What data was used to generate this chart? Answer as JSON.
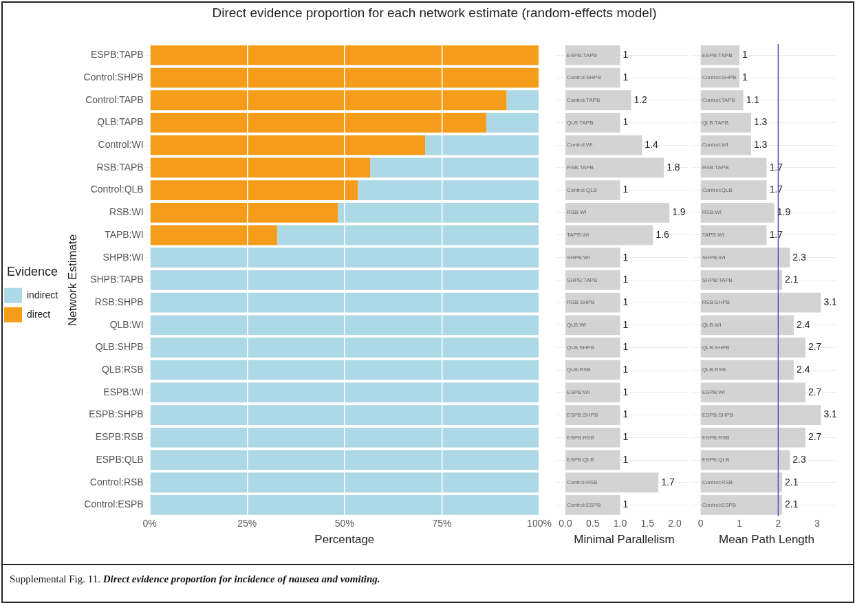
{
  "chart_data": [
    {
      "type": "bar",
      "orientation": "horizontal",
      "stacked": true,
      "title": "Direct evidence proportion for each network estimate (random-effects model)",
      "xlabel": "Percentage",
      "ylabel": "Network Estimate",
      "categories": [
        "ESPB:TAPB",
        "Control:SHPB",
        "Control:TAPB",
        "QLB:TAPB",
        "Control:WI",
        "RSB:TAPB",
        "Control:QLB",
        "RSB:WI",
        "TAPB:WI",
        "SHPB:WI",
        "SHPB:TAPB",
        "RSB:SHPB",
        "QLB:WI",
        "QLB:SHPB",
        "QLB:RSB",
        "ESPB:WI",
        "ESPB:SHPB",
        "ESPB:RSB",
        "ESPB:QLB",
        "Control:RSB",
        "Control:ESPB"
      ],
      "series": [
        {
          "name": "direct",
          "color": "#f59d1a",
          "values": [
            100,
            100,
            91.6,
            86.4,
            70.7,
            56.6,
            53.4,
            48.3,
            32.7,
            0,
            0,
            0,
            0,
            0,
            0,
            0,
            0,
            0,
            0,
            0,
            0
          ]
        },
        {
          "name": "indirect",
          "color": "#add8e6",
          "values": [
            0,
            0,
            8.4,
            13.6,
            29.3,
            43.4,
            46.6,
            51.7,
            67.3,
            100,
            100,
            100,
            100,
            100,
            100,
            100,
            100,
            100,
            100,
            100,
            100
          ]
        }
      ],
      "xlim": [
        0,
        100
      ],
      "xticks": [
        {
          "value": 0,
          "label": "0%"
        },
        {
          "value": 25,
          "label": "25%"
        },
        {
          "value": 50,
          "label": "50%"
        },
        {
          "value": 75,
          "label": "75%"
        },
        {
          "value": 100,
          "label": "100%"
        }
      ],
      "grid": true,
      "legend": "left",
      "legend_title": "Evidence",
      "annotations": [
        "Supplemental Fig. 11.",
        "Direct evidence proportion for incidence of  nausea and vomiting."
      ]
    },
    {
      "type": "bar",
      "orientation": "horizontal",
      "xlabel": "Minimal Parallelism",
      "categories": [
        "ESPB:TAPB",
        "Control:SHPB",
        "Control:TAPB",
        "QLB:TAPB",
        "Control:WI",
        "RSB:TAPB",
        "Control:QLB",
        "RSB:WI",
        "TAPB:WI",
        "SHPB:WI",
        "SHPB:TAPB",
        "RSB:SHPB",
        "QLB:WI",
        "QLB:SHPB",
        "QLB:RSB",
        "ESPB:WI",
        "ESPB:SHPB",
        "ESPB:RSB",
        "ESPB:QLB",
        "Control:RSB",
        "Control:ESPB"
      ],
      "values": [
        1,
        1,
        1.2,
        1,
        1.4,
        1.8,
        1,
        1.9,
        1.6,
        1,
        1,
        1,
        1,
        1,
        1,
        1,
        1,
        1,
        1,
        1.7,
        1
      ],
      "color": "#d3d3d3",
      "xlim": [
        -0.1,
        2.25
      ],
      "xticks": [
        {
          "value": 0,
          "label": "0.0"
        },
        {
          "value": 0.5,
          "label": "0.5"
        },
        {
          "value": 1,
          "label": "1.0"
        },
        {
          "value": 1.5,
          "label": "1.5"
        },
        {
          "value": 2,
          "label": "2.0"
        }
      ],
      "grid": "y",
      "tick_labels": "x",
      "data_labels": true
    },
    {
      "type": "bar",
      "orientation": "horizontal",
      "xlabel": "Mean Path Length",
      "categories": [
        "ESPB:TAPB",
        "Control:SHPB",
        "Control:TAPB",
        "QLB:TAPB",
        "Control:WI",
        "RSB:TAPB",
        "Control:QLB",
        "RSB:WI",
        "TAPB:WI",
        "SHPB:WI",
        "SHPB:TAPB",
        "RSB:SHPB",
        "QLB:WI",
        "QLB:SHPB",
        "QLB:RSB",
        "ESPB:WI",
        "ESPB:SHPB",
        "ESPB:RSB",
        "ESPB:QLB",
        "Control:RSB",
        "Control:ESPB"
      ],
      "values": [
        1,
        1,
        1.1,
        1.3,
        1.3,
        1.7,
        1.7,
        1.9,
        1.7,
        2.3,
        2.1,
        3.1,
        2.4,
        2.7,
        2.4,
        2.7,
        3.1,
        2.7,
        2.3,
        2.1,
        2.1
      ],
      "color": "#d3d3d3",
      "xlim": [
        -0.1,
        3.5
      ],
      "xticks": [
        0,
        1,
        2,
        3
      ],
      "grid": "y",
      "tick_labels": "x",
      "data_labels": true,
      "ref_lines": [
        {
          "axis": "x",
          "value": 2,
          "color": "#5050b8"
        }
      ]
    }
  ]
}
